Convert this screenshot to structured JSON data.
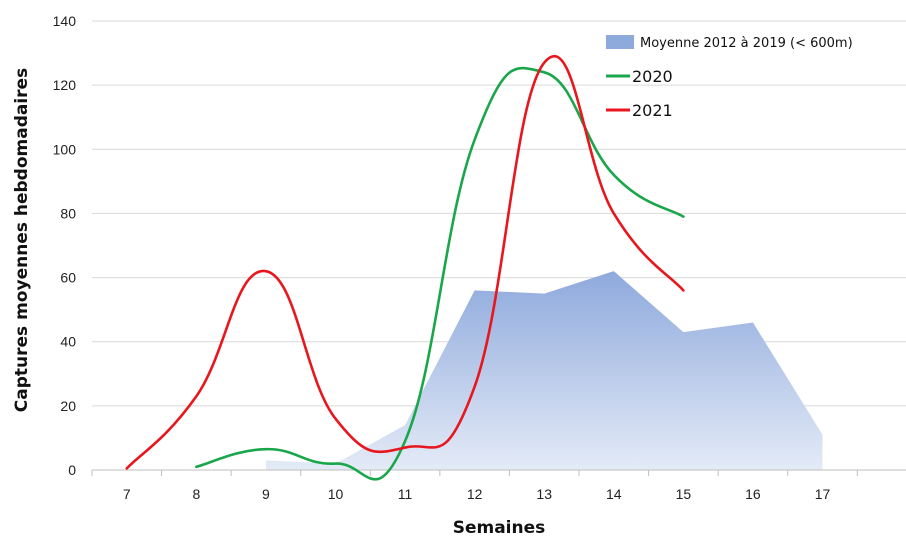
{
  "chart_data": {
    "type": "line",
    "title": "",
    "xlabel": "Semaines",
    "ylabel": "Captures moyennes hebdomadaires",
    "x_ticks": [
      7,
      8,
      9,
      10,
      11,
      12,
      13,
      14,
      15,
      16,
      17
    ],
    "y_ticks": [
      0,
      20,
      40,
      60,
      80,
      100,
      120,
      140
    ],
    "xlim": [
      6.5,
      18.2
    ],
    "ylim": [
      0,
      140
    ],
    "grid": "horizontal",
    "legend_position": "top-right",
    "series": [
      {
        "name": "Moyenne 2012 à 2019 (< 600m)",
        "kind": "area",
        "color": "#8ea9dc",
        "x": [
          9,
          10,
          11,
          12,
          13,
          14,
          15,
          16,
          17
        ],
        "y": [
          3,
          2,
          14,
          56,
          55,
          62,
          43,
          46,
          11
        ]
      },
      {
        "name": "2020",
        "kind": "line",
        "color": "#1aa64a",
        "x": [
          8,
          9,
          10,
          11,
          12,
          13,
          14,
          15
        ],
        "y": [
          1,
          6.5,
          2,
          9,
          103,
          124,
          92,
          79
        ]
      },
      {
        "name": "2021",
        "kind": "line",
        "color": "#e8161d",
        "x": [
          7,
          8,
          9,
          10,
          11,
          12,
          13,
          14,
          15
        ],
        "y": [
          0.5,
          23,
          62,
          16,
          7,
          26,
          127,
          80,
          56
        ]
      }
    ]
  }
}
